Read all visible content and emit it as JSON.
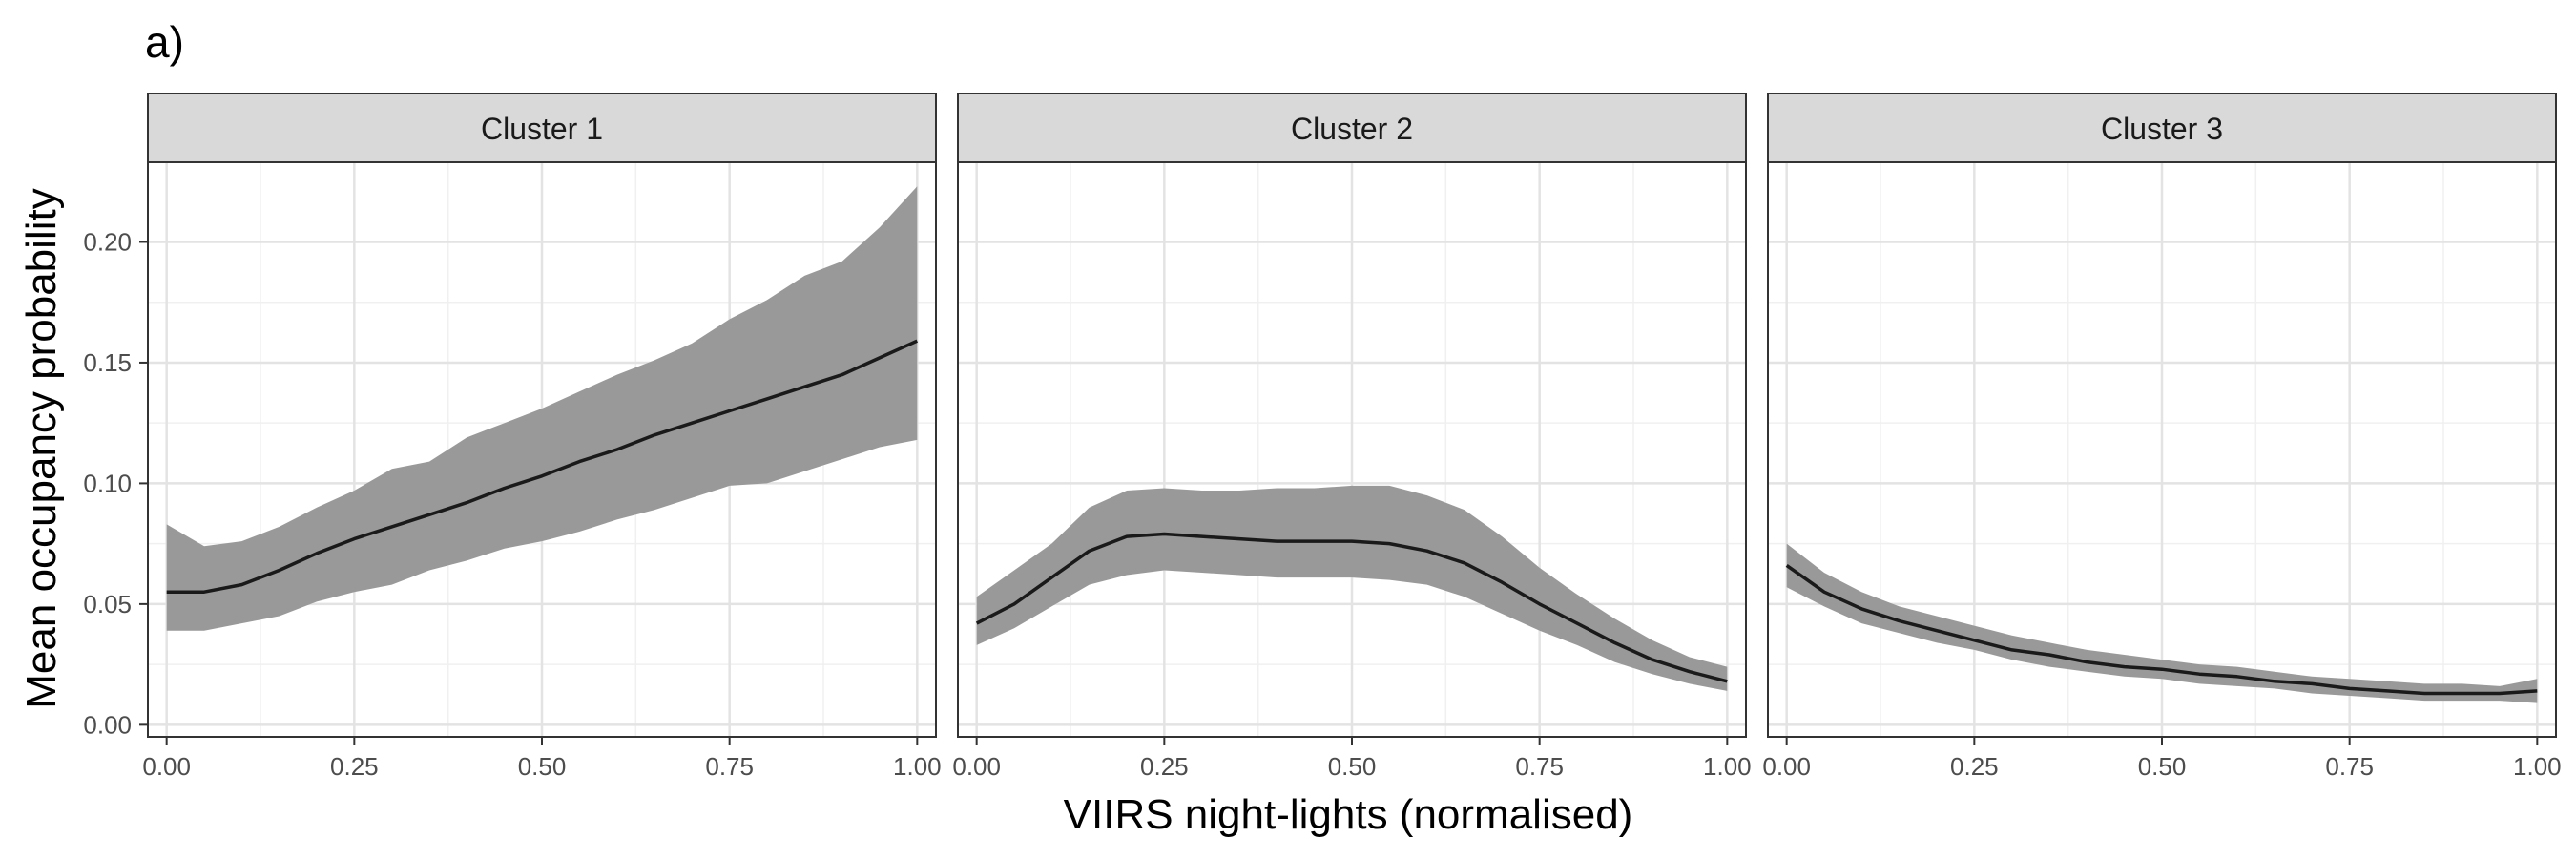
{
  "figure": {
    "panel_tag": "a)",
    "xlabel": "VIIRS night-lights (normalised)",
    "ylabel": "Mean occupancy probability"
  },
  "chart_data": {
    "type": "line",
    "facet_layout": "1 row x 3 columns, shared y axis",
    "xlim": [
      -0.025,
      1.025
    ],
    "ylim": [
      -0.005,
      0.233
    ],
    "x_ticks": [
      0.0,
      0.25,
      0.5,
      0.75,
      1.0
    ],
    "x_tick_labels": [
      "0.00",
      "0.25",
      "0.50",
      "0.75",
      "1.00"
    ],
    "y_ticks": [
      0.0,
      0.05,
      0.1,
      0.15,
      0.2
    ],
    "y_tick_labels": [
      "0.00",
      "0.05",
      "0.10",
      "0.15",
      "0.20"
    ],
    "grid": true,
    "ribbon_color": "#999999",
    "line_color": "#1a1a1a",
    "strip_color": "#d9d9d9",
    "x": [
      0.0,
      0.05,
      0.1,
      0.15,
      0.2,
      0.25,
      0.3,
      0.35,
      0.4,
      0.45,
      0.5,
      0.55,
      0.6,
      0.65,
      0.7,
      0.75,
      0.8,
      0.85,
      0.9,
      0.95,
      1.0
    ],
    "panels": [
      {
        "strip": "Cluster 1",
        "mean": [
          0.055,
          0.055,
          0.058,
          0.064,
          0.071,
          0.077,
          0.082,
          0.087,
          0.092,
          0.098,
          0.103,
          0.109,
          0.114,
          0.12,
          0.125,
          0.13,
          0.135,
          0.14,
          0.145,
          0.152,
          0.159
        ],
        "lower": [
          0.039,
          0.039,
          0.042,
          0.045,
          0.051,
          0.055,
          0.058,
          0.064,
          0.068,
          0.073,
          0.076,
          0.08,
          0.085,
          0.089,
          0.094,
          0.099,
          0.1,
          0.105,
          0.11,
          0.115,
          0.118
        ],
        "upper": [
          0.083,
          0.074,
          0.076,
          0.082,
          0.09,
          0.097,
          0.106,
          0.109,
          0.119,
          0.125,
          0.131,
          0.138,
          0.145,
          0.151,
          0.158,
          0.168,
          0.176,
          0.186,
          0.192,
          0.206,
          0.223
        ]
      },
      {
        "strip": "Cluster 2",
        "mean": [
          0.042,
          0.05,
          0.061,
          0.072,
          0.078,
          0.079,
          0.078,
          0.077,
          0.076,
          0.076,
          0.076,
          0.075,
          0.072,
          0.067,
          0.059,
          0.05,
          0.042,
          0.034,
          0.027,
          0.022,
          0.018
        ],
        "lower": [
          0.033,
          0.04,
          0.049,
          0.058,
          0.062,
          0.064,
          0.063,
          0.062,
          0.061,
          0.061,
          0.061,
          0.06,
          0.058,
          0.053,
          0.046,
          0.039,
          0.033,
          0.026,
          0.021,
          0.017,
          0.014
        ],
        "upper": [
          0.053,
          0.064,
          0.075,
          0.09,
          0.097,
          0.098,
          0.097,
          0.097,
          0.098,
          0.098,
          0.099,
          0.099,
          0.095,
          0.089,
          0.078,
          0.065,
          0.054,
          0.044,
          0.035,
          0.028,
          0.024
        ]
      },
      {
        "strip": "Cluster 3",
        "mean": [
          0.066,
          0.055,
          0.048,
          0.043,
          0.039,
          0.035,
          0.031,
          0.029,
          0.026,
          0.024,
          0.023,
          0.021,
          0.02,
          0.018,
          0.017,
          0.015,
          0.014,
          0.013,
          0.013,
          0.013,
          0.014
        ],
        "lower": [
          0.057,
          0.049,
          0.042,
          0.038,
          0.034,
          0.031,
          0.027,
          0.024,
          0.022,
          0.02,
          0.019,
          0.017,
          0.016,
          0.015,
          0.013,
          0.012,
          0.011,
          0.01,
          0.01,
          0.01,
          0.009
        ],
        "upper": [
          0.075,
          0.063,
          0.055,
          0.049,
          0.045,
          0.041,
          0.037,
          0.034,
          0.031,
          0.029,
          0.027,
          0.025,
          0.024,
          0.022,
          0.02,
          0.019,
          0.018,
          0.017,
          0.017,
          0.016,
          0.019
        ]
      }
    ]
  }
}
